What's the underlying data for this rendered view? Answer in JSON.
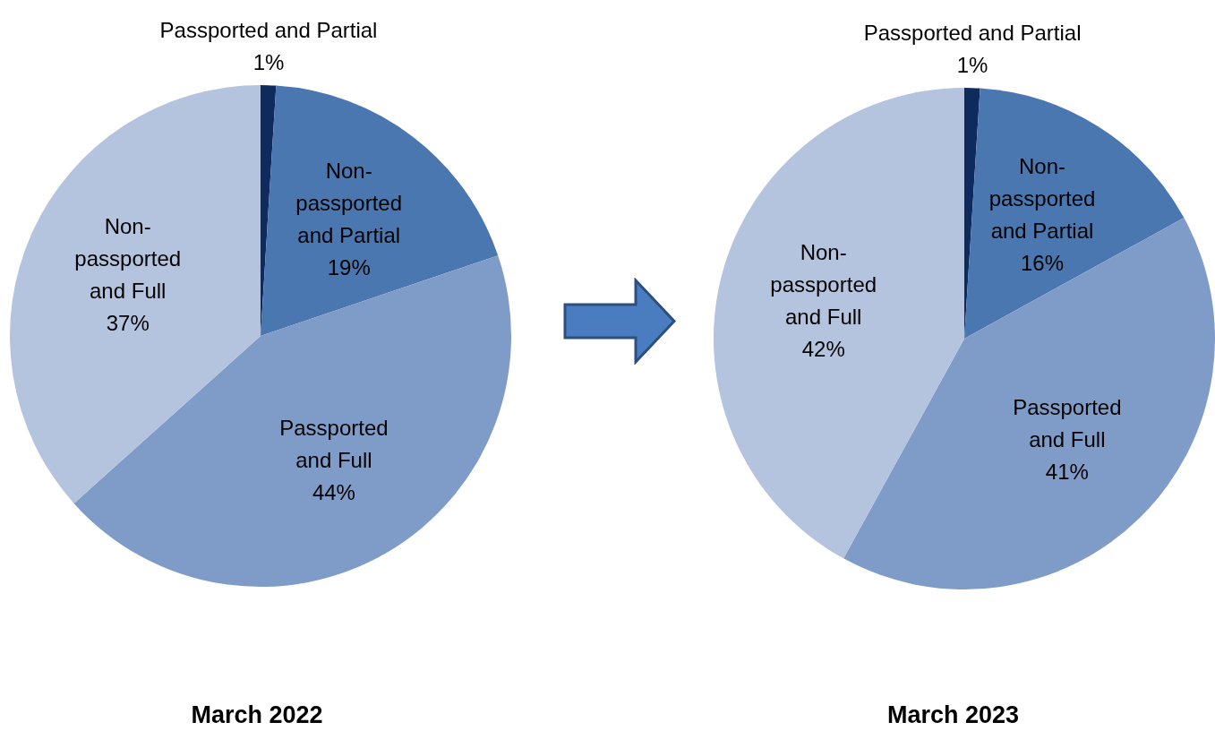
{
  "chart_data": [
    {
      "type": "pie",
      "title": "March 2022",
      "categories": [
        "Passported and Partial",
        "Non-passported and Partial",
        "Passported and Full",
        "Non-passported and Full"
      ],
      "values": [
        1,
        19,
        44,
        37
      ],
      "value_labels": [
        "1%",
        "19%",
        "44%",
        "37%"
      ],
      "colors": [
        "#0f2a5c",
        "#4a77b0",
        "#7f9cc8",
        "#b4c3de"
      ],
      "legend": false
    },
    {
      "type": "pie",
      "title": "March 2023",
      "categories": [
        "Passported and Partial",
        "Non-passported and Partial",
        "Passported and Full",
        "Non-passported and Full"
      ],
      "values": [
        1,
        16,
        41,
        42
      ],
      "value_labels": [
        "1%",
        "16%",
        "41%",
        "42%"
      ],
      "colors": [
        "#0f2a5c",
        "#4a77b0",
        "#7f9cc8",
        "#b4c3de"
      ],
      "legend": false
    }
  ]
}
